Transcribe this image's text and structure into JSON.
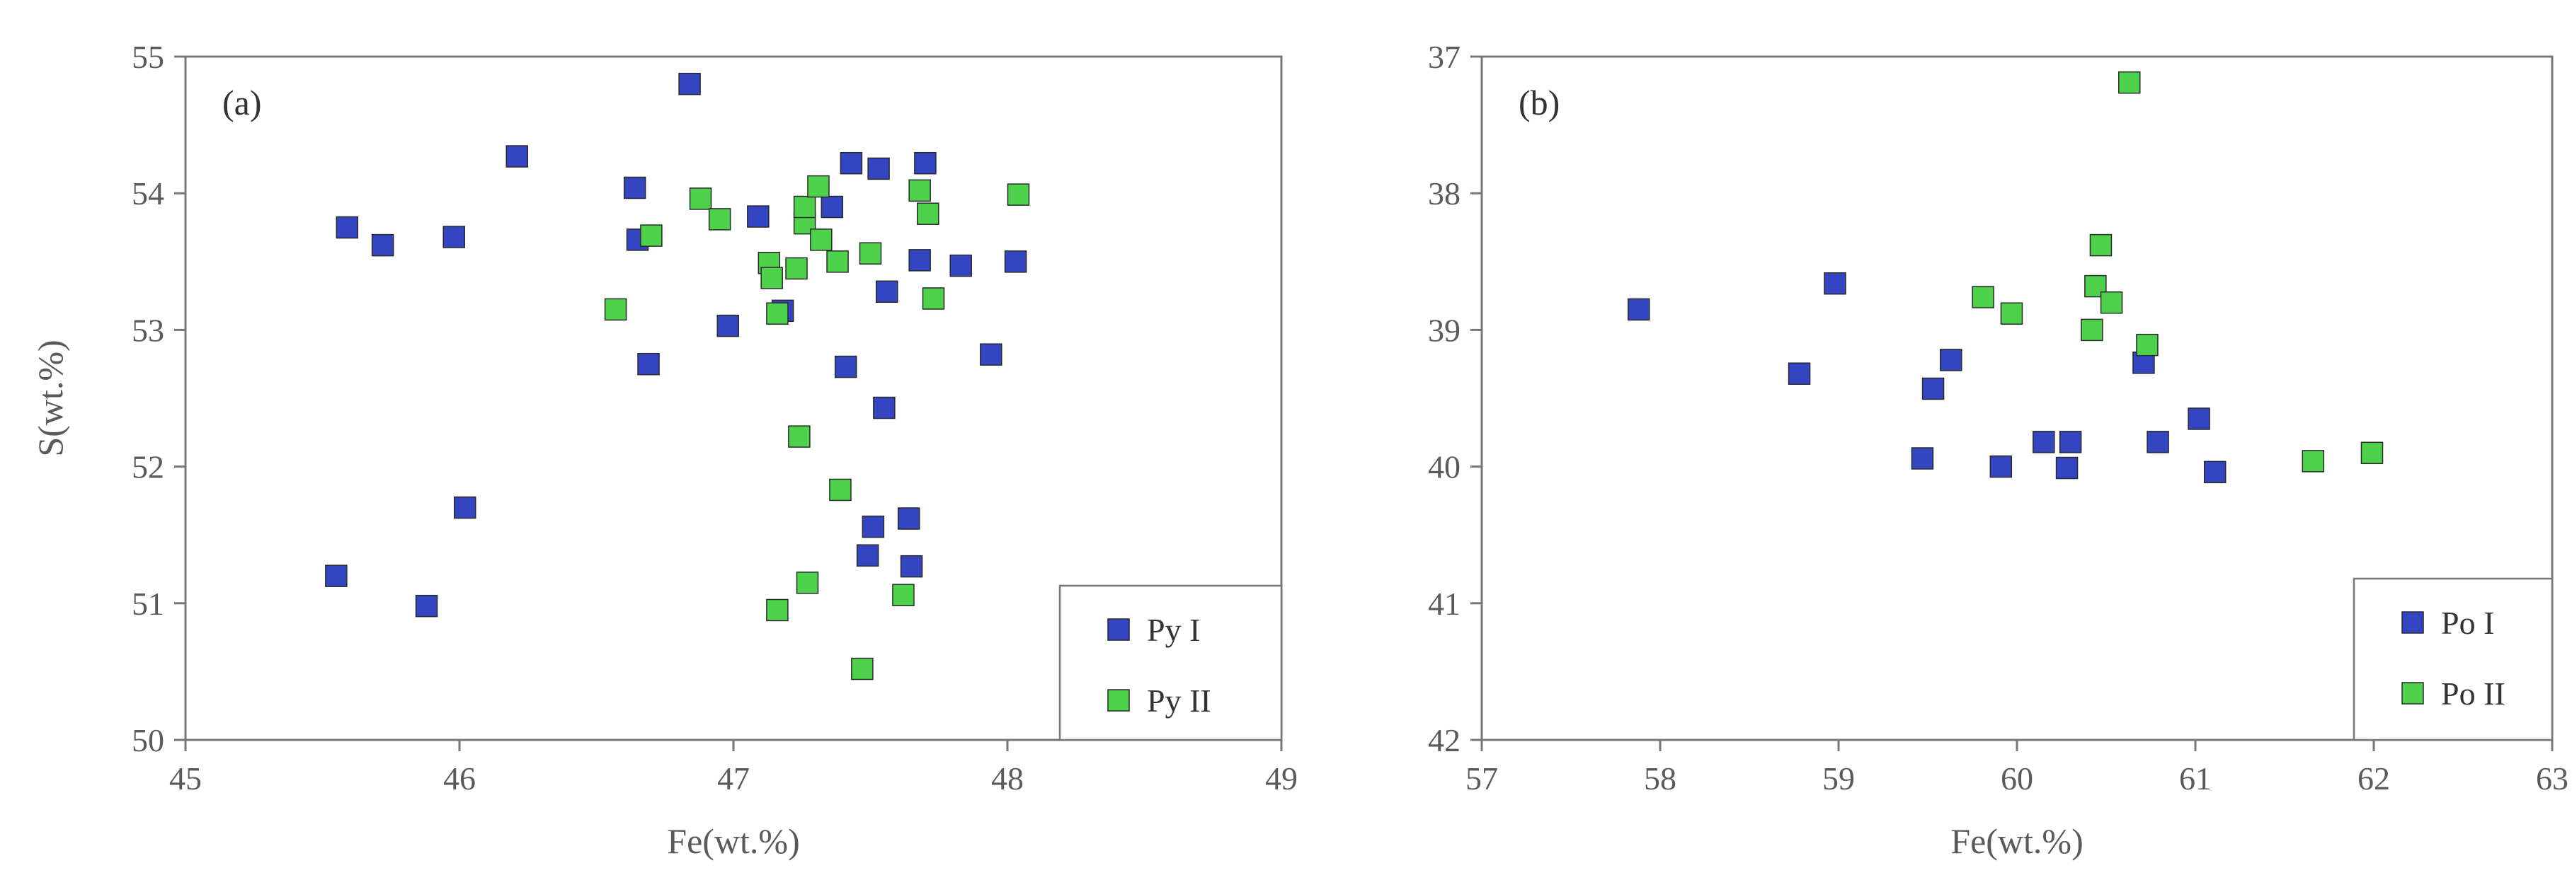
{
  "chart_data": [
    {
      "type": "scatter",
      "panel_label": "(a)",
      "xlabel": "Fe(wt.%)",
      "ylabel": "S(wt.%)",
      "xlim": [
        45,
        49
      ],
      "ylim": [
        50,
        55
      ],
      "y_reversed": false,
      "xticks": [
        45,
        46,
        47,
        48,
        49
      ],
      "yticks": [
        50,
        51,
        52,
        53,
        54,
        55
      ],
      "legend_position": "bottom-right",
      "series": [
        {
          "name": "Py I",
          "color": "#3345c1",
          "points": [
            [
              45.55,
              51.2
            ],
            [
              45.59,
              53.75
            ],
            [
              45.72,
              53.62
            ],
            [
              45.88,
              50.98
            ],
            [
              45.98,
              53.68
            ],
            [
              46.02,
              51.7
            ],
            [
              46.21,
              54.27
            ],
            [
              46.64,
              54.04
            ],
            [
              46.65,
              53.66
            ],
            [
              46.69,
              52.75
            ],
            [
              46.84,
              54.8
            ],
            [
              46.98,
              53.03
            ],
            [
              47.09,
              53.83
            ],
            [
              47.18,
              53.14
            ],
            [
              47.36,
              53.9
            ],
            [
              47.41,
              52.73
            ],
            [
              47.43,
              54.22
            ],
            [
              47.49,
              51.35
            ],
            [
              47.51,
              51.56
            ],
            [
              47.53,
              54.18
            ],
            [
              47.55,
              52.43
            ],
            [
              47.56,
              53.28
            ],
            [
              47.64,
              51.62
            ],
            [
              47.65,
              51.27
            ],
            [
              47.68,
              53.51
            ],
            [
              47.7,
              54.22
            ],
            [
              47.83,
              53.47
            ],
            [
              47.94,
              52.82
            ],
            [
              48.03,
              53.5
            ]
          ]
        },
        {
          "name": "Py II",
          "color": "#4ed24b",
          "points": [
            [
              46.57,
              53.15
            ],
            [
              46.7,
              53.69
            ],
            [
              46.88,
              53.96
            ],
            [
              46.95,
              53.81
            ],
            [
              47.13,
              53.49
            ],
            [
              47.14,
              53.38
            ],
            [
              47.16,
              53.12
            ],
            [
              47.16,
              50.95
            ],
            [
              47.23,
              53.45
            ],
            [
              47.24,
              52.22
            ],
            [
              47.26,
              53.78
            ],
            [
              47.26,
              53.9
            ],
            [
              47.27,
              51.15
            ],
            [
              47.31,
              54.05
            ],
            [
              47.32,
              53.66
            ],
            [
              47.38,
              53.5
            ],
            [
              47.39,
              51.83
            ],
            [
              47.47,
              50.52
            ],
            [
              47.5,
              53.56
            ],
            [
              47.62,
              51.06
            ],
            [
              47.68,
              54.02
            ],
            [
              47.71,
              53.85
            ],
            [
              47.73,
              53.23
            ],
            [
              48.04,
              53.99
            ]
          ]
        }
      ]
    },
    {
      "type": "scatter",
      "panel_label": "(b)",
      "xlabel": "Fe(wt.%)",
      "ylabel": "",
      "xlim": [
        57,
        63
      ],
      "ylim": [
        37,
        42
      ],
      "y_reversed": true,
      "xticks": [
        57,
        58,
        59,
        60,
        61,
        62,
        63
      ],
      "yticks": [
        37,
        38,
        39,
        40,
        41,
        42
      ],
      "legend_position": "bottom-right",
      "series": [
        {
          "name": "Po I",
          "color": "#3345c1",
          "points": [
            [
              57.88,
              38.85
            ],
            [
              58.78,
              39.32
            ],
            [
              58.98,
              38.66
            ],
            [
              59.47,
              39.94
            ],
            [
              59.53,
              39.43
            ],
            [
              59.63,
              39.22
            ],
            [
              59.91,
              40.0
            ],
            [
              60.15,
              39.82
            ],
            [
              60.28,
              40.01
            ],
            [
              60.3,
              39.82
            ],
            [
              60.71,
              39.24
            ],
            [
              61.02,
              39.65
            ],
            [
              60.79,
              39.82
            ],
            [
              61.11,
              40.04
            ]
          ]
        },
        {
          "name": "Po II",
          "color": "#4ed24b",
          "points": [
            [
              59.81,
              38.76
            ],
            [
              59.97,
              38.88
            ],
            [
              60.42,
              39.0
            ],
            [
              60.44,
              38.68
            ],
            [
              60.47,
              38.38
            ],
            [
              60.53,
              38.8
            ],
            [
              60.63,
              37.19
            ],
            [
              60.73,
              39.11
            ],
            [
              61.66,
              39.96
            ],
            [
              61.99,
              39.9
            ]
          ]
        }
      ]
    }
  ]
}
